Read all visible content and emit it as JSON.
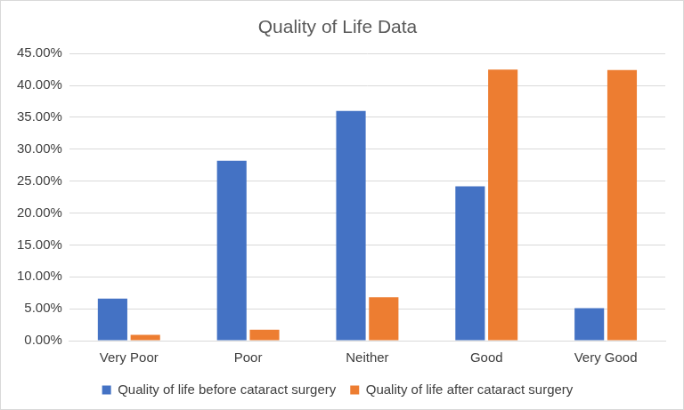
{
  "chart_data": {
    "type": "bar",
    "title": "Quality of Life Data",
    "categories": [
      "Very Poor",
      "Poor",
      "Neither",
      "Good",
      "Very Good"
    ],
    "series": [
      {
        "name": "Quality of life before cataract surgery",
        "color": "#4472c4",
        "values": [
          6.6,
          28.2,
          36.0,
          24.2,
          5.1
        ]
      },
      {
        "name": "Quality of life after cataract surgery",
        "color": "#ed7d31",
        "values": [
          0.9,
          1.7,
          6.8,
          42.5,
          42.4
        ]
      }
    ],
    "ylim": [
      0,
      45
    ],
    "yticks": [
      {
        "value": 0,
        "label": "0.00%"
      },
      {
        "value": 5,
        "label": "5.00%"
      },
      {
        "value": 10,
        "label": "10.00%"
      },
      {
        "value": 15,
        "label": "15.00%"
      },
      {
        "value": 20,
        "label": "20.00%"
      },
      {
        "value": 25,
        "label": "25.00%"
      },
      {
        "value": 30,
        "label": "30.00%"
      },
      {
        "value": 35,
        "label": "35.00%"
      },
      {
        "value": 40,
        "label": "40.00%"
      },
      {
        "value": 45,
        "label": "45.00%"
      }
    ],
    "grid": true,
    "legend": "bottom"
  }
}
